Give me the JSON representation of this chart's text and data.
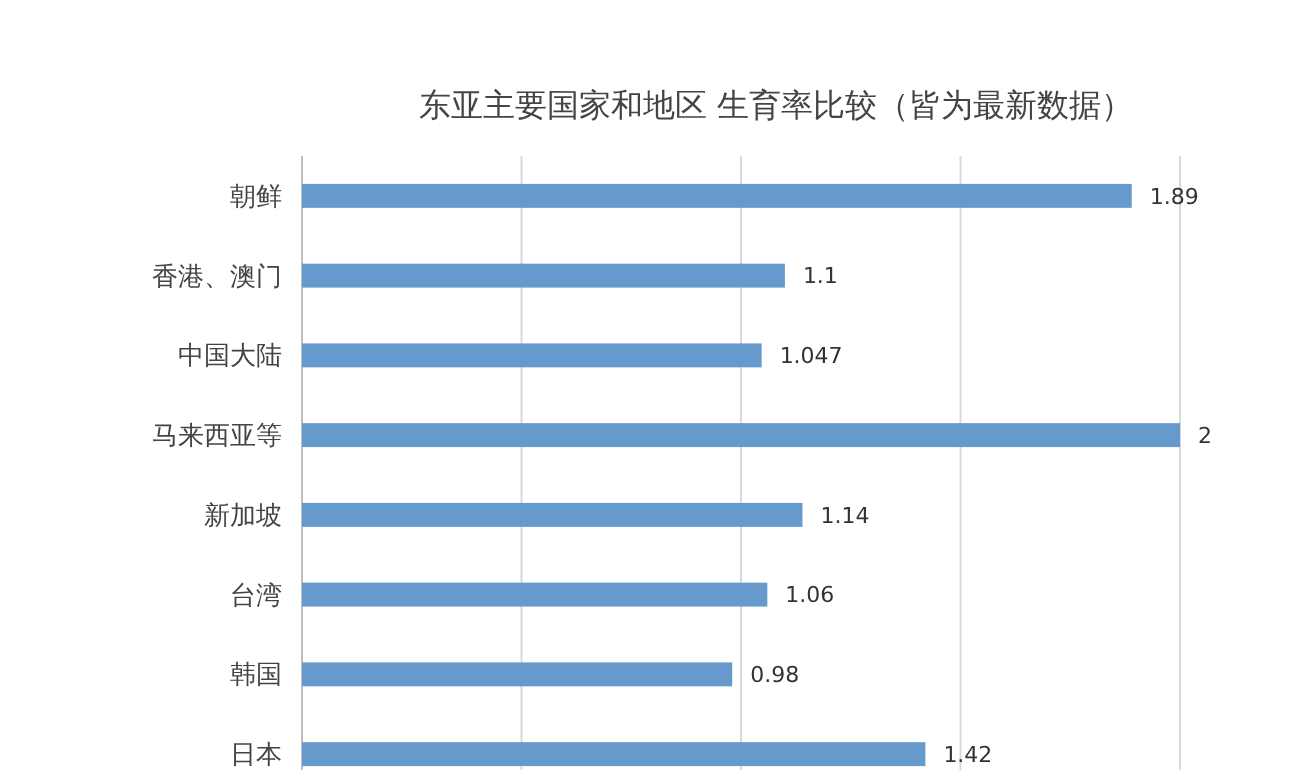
{
  "chart_data": {
    "type": "bar",
    "orientation": "horizontal",
    "title": "东亚主要国家和地区 生育率比较（皆为最新数据）",
    "categories": [
      "朝鲜",
      "香港、澳门",
      "中国大陆",
      "马来西亚等",
      "新加坡",
      "台湾",
      "韩国",
      "日本"
    ],
    "values": [
      1.89,
      1.1,
      1.047,
      2,
      1.14,
      1.06,
      0.98,
      1.42
    ],
    "color": "#6699cc",
    "xlim": [
      0,
      2
    ],
    "xticks": [
      {
        "value": 0,
        "label": null
      },
      {
        "value": 0.5,
        "label": null
      },
      {
        "value": 1,
        "label": null
      },
      {
        "value": 1.5,
        "label": null
      },
      {
        "value": 2,
        "label": null
      }
    ],
    "grid": "x",
    "tick_labels": "y",
    "data_labels": true
  }
}
